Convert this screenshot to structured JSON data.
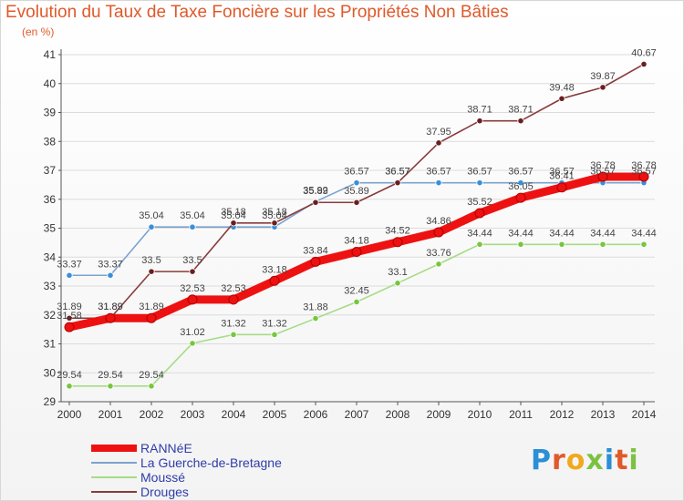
{
  "title": "Evolution du Taux de Taxe Foncière sur les Propriétés Non Bâties",
  "unit": "(en %)",
  "brand": {
    "letters": [
      {
        "char": "P",
        "color": "#2a8fd6"
      },
      {
        "char": "r",
        "color": "#e0592a"
      },
      {
        "char": "o",
        "color": "#f2a81d"
      },
      {
        "char": "x",
        "color": "#7cc242"
      },
      {
        "char": "i",
        "color": "#2a8fd6"
      },
      {
        "char": "t",
        "color": "#e0592a"
      },
      {
        "char": "i",
        "color": "#7cc242"
      }
    ]
  },
  "chart_data": {
    "type": "line",
    "title": "Evolution du Taux de Taxe Foncière sur les Propriétés Non Bâties",
    "ylabel": "(en %)",
    "xlabel": "",
    "ylim": [
      29,
      41
    ],
    "yticks": [
      29,
      30,
      31,
      32,
      33,
      34,
      35,
      36,
      37,
      38,
      39,
      40,
      41
    ],
    "x": [
      "2000",
      "2001",
      "2002",
      "2003",
      "2004",
      "2005",
      "2006",
      "2007",
      "2008",
      "2009",
      "2010",
      "2011",
      "2012",
      "2013",
      "2014"
    ],
    "grid": "horizontal",
    "legend_position": "bottom-left",
    "series": [
      {
        "name": "RANNéE",
        "color": "#ee1111",
        "marker_color": "#ee1111",
        "width": "thick",
        "values": [
          31.58,
          31.89,
          31.89,
          32.53,
          32.53,
          33.18,
          33.84,
          34.18,
          34.52,
          34.86,
          35.52,
          36.05,
          36.41,
          36.78,
          36.78
        ],
        "labels": [
          "31.58",
          "31.89",
          "31.89",
          "32.53",
          "32.53",
          "33.18",
          "33.84",
          "34.18",
          "34.52",
          "34.86",
          "35.52",
          "36.05",
          "36.41",
          "36.78",
          "36.78"
        ]
      },
      {
        "name": "La Guerche-de-Bretagne",
        "color": "#7ba3d0",
        "marker_color": "#3a8fd8",
        "width": "thin",
        "values": [
          33.37,
          33.37,
          35.04,
          35.04,
          35.04,
          35.04,
          35.92,
          36.57,
          36.57,
          36.57,
          36.57,
          36.57,
          36.57,
          36.57,
          36.57
        ],
        "labels": [
          "33.37",
          "33.37",
          "35.04",
          "35.04",
          "35.04",
          "35.04",
          "35.92",
          "36.57",
          "36.57",
          "36.57",
          "36.57",
          "36.57",
          "36.57",
          "36.57",
          "36.57"
        ]
      },
      {
        "name": "Moussé",
        "color": "#a6dc84",
        "marker_color": "#77c63e",
        "width": "thin",
        "values": [
          29.54,
          29.54,
          29.54,
          31.02,
          31.32,
          31.32,
          31.88,
          32.45,
          33.1,
          33.76,
          34.44,
          34.44,
          34.44,
          34.44,
          34.44
        ],
        "labels": [
          "29.54",
          "29.54",
          "29.54",
          "31.02",
          "31.32",
          "31.32",
          "31.88",
          "32.45",
          "33.1",
          "33.76",
          "34.44",
          "34.44",
          "34.44",
          "34.44",
          "34.44"
        ]
      },
      {
        "name": "Drouges",
        "color": "#8a3a3a",
        "marker_color": "#6a1f1f",
        "width": "thin",
        "values": [
          31.89,
          31.89,
          33.5,
          33.5,
          35.18,
          35.18,
          35.89,
          35.89,
          36.57,
          37.95,
          38.71,
          38.71,
          39.48,
          39.87,
          40.67
        ],
        "labels": [
          "31.89",
          "31.89",
          "33.5",
          "33.5",
          "35.18",
          "35.18",
          "35.89",
          "35.89",
          "36.57",
          "37.95",
          "38.71",
          "38.71",
          "39.48",
          "39.87",
          "40.67"
        ]
      }
    ]
  }
}
